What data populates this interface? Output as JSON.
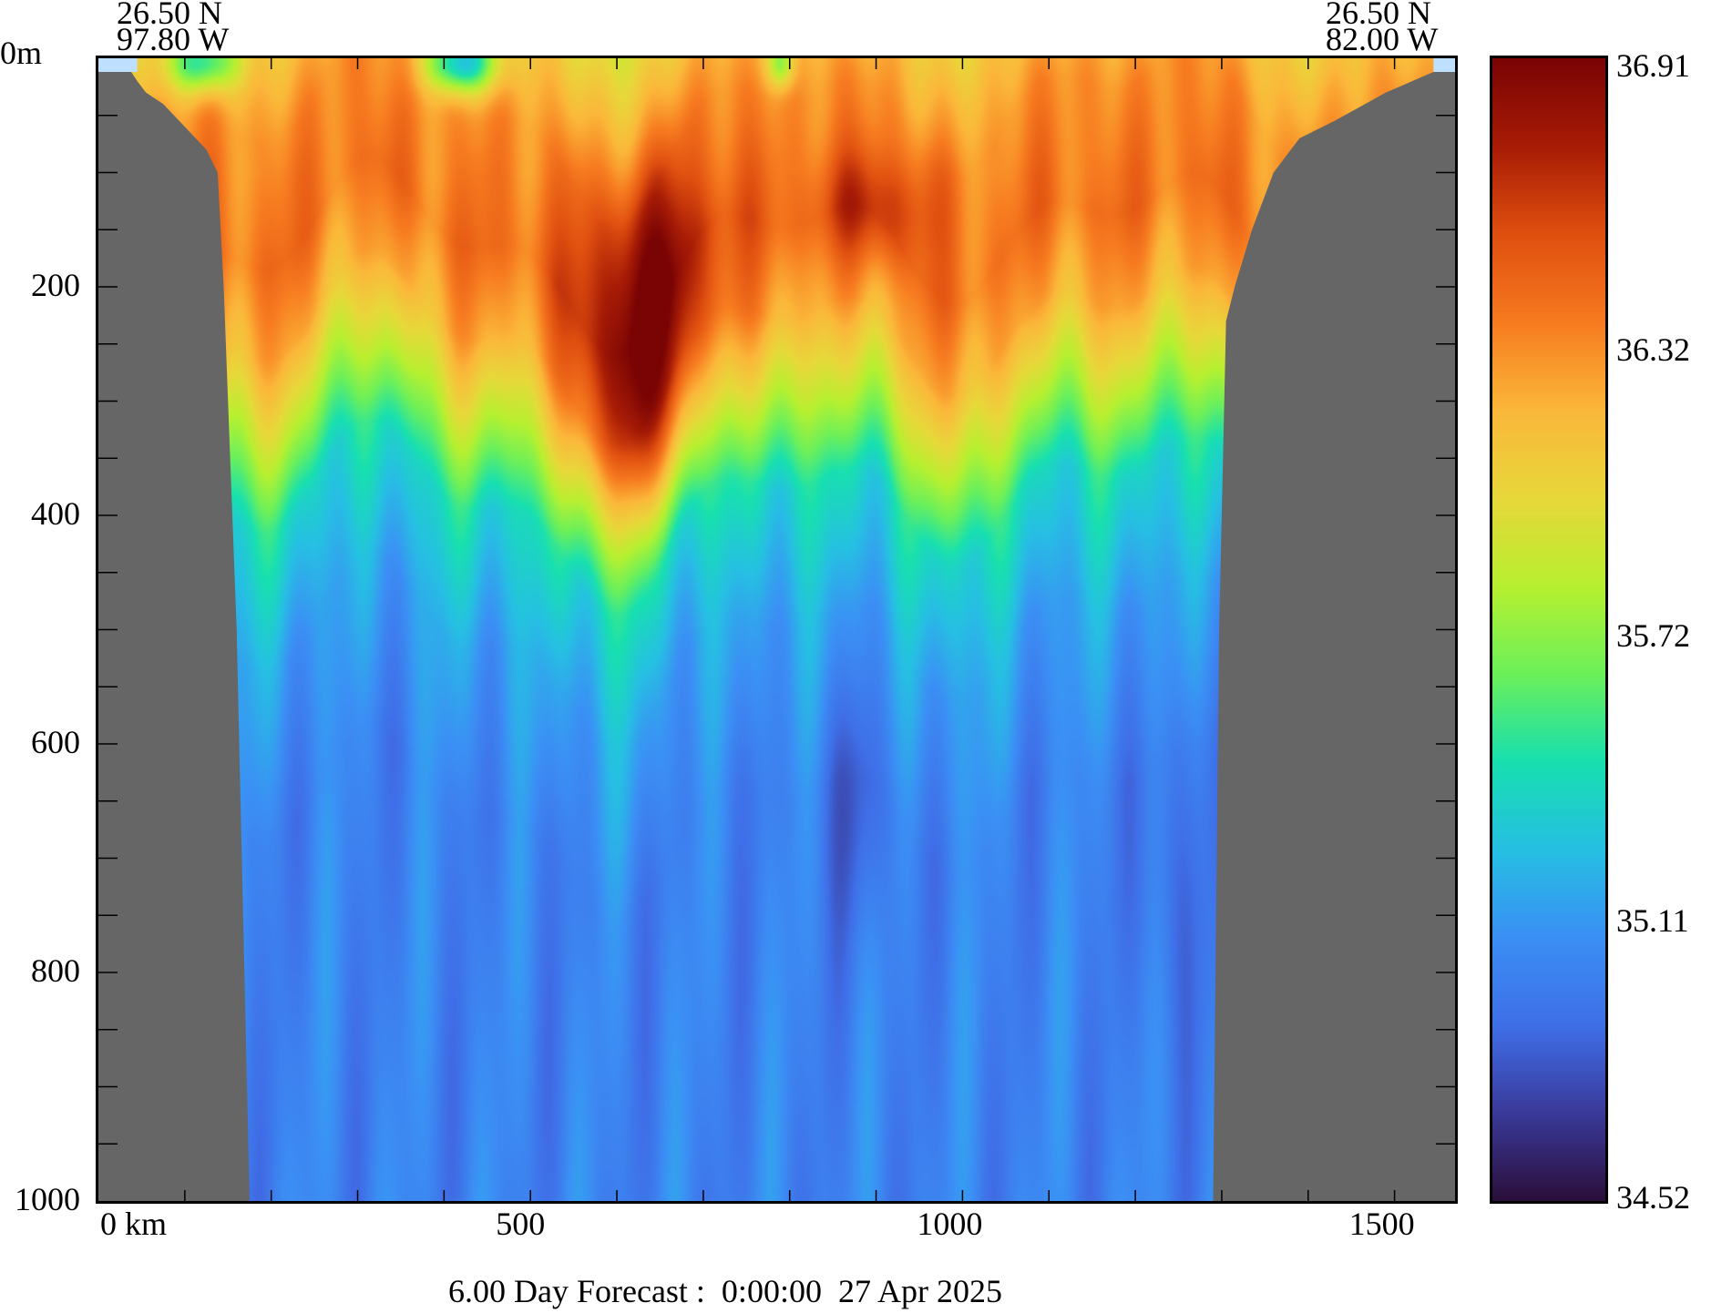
{
  "chart_data": {
    "type": "heatmap",
    "title": "6.00 Day Forecast :  0:00:00  27 Apr 2025",
    "section_start": {
      "lat": "26.50 N",
      "lon": "97.80 W"
    },
    "section_end": {
      "lat": "26.50 N",
      "lon": "82.00 W"
    },
    "xlabel": "km",
    "ylabel": "m",
    "xlim": [
      0,
      1570
    ],
    "ylim": [
      1000,
      0
    ],
    "x_ticks": [
      {
        "value": 0,
        "label": "0 km"
      },
      {
        "value": 500,
        "label": "500"
      },
      {
        "value": 1000,
        "label": "1000"
      },
      {
        "value": 1500,
        "label": "1500"
      }
    ],
    "x_minor_step": 100,
    "y_ticks": [
      {
        "value": 0,
        "label": "0m"
      },
      {
        "value": 200,
        "label": "200"
      },
      {
        "value": 400,
        "label": "400"
      },
      {
        "value": 600,
        "label": "600"
      },
      {
        "value": 800,
        "label": "800"
      },
      {
        "value": 1000,
        "label": "1000"
      }
    ],
    "y_minor_step": 50,
    "colorbar": {
      "min": 34.52,
      "max": 36.91,
      "tick_labels": [
        "36.91",
        "36.32",
        "35.72",
        "35.11",
        "34.52"
      ],
      "colormap": [
        "#2b0f3a",
        "#3a3a9a",
        "#3f6fe8",
        "#3b90f5",
        "#26c0e3",
        "#18e0b0",
        "#6cf05a",
        "#b8f030",
        "#e8d83a",
        "#fbb83a",
        "#f77b20",
        "#e05010",
        "#a81c06",
        "#7a0404"
      ]
    },
    "mean_profile": [
      [
        0,
        36.2
      ],
      [
        40,
        36.3
      ],
      [
        150,
        36.4
      ],
      [
        230,
        36.2
      ],
      [
        300,
        35.85
      ],
      [
        380,
        35.4
      ],
      [
        500,
        35.15
      ],
      [
        650,
        35.0
      ],
      [
        1000,
        35.0
      ]
    ],
    "features": [
      {
        "name": "high-salinity core",
        "x_km": 640,
        "depth_m": 210,
        "value": 36.91
      },
      {
        "name": "secondary maximum",
        "x_km": 900,
        "depth_m": 130,
        "value": 36.6
      },
      {
        "name": "fresh surface patch",
        "x_km": 120,
        "depth_m": 5,
        "value": 35.5
      },
      {
        "name": "fresh surface patch",
        "x_km": 420,
        "depth_m": 5,
        "value": 35.3
      }
    ],
    "land_left": [
      [
        0,
        12
      ],
      [
        38,
        12
      ],
      [
        45,
        20
      ],
      [
        55,
        30
      ],
      [
        75,
        40
      ],
      [
        100,
        60
      ],
      [
        125,
        80
      ],
      [
        138,
        100
      ],
      [
        145,
        200
      ],
      [
        160,
        500
      ],
      [
        175,
        1000
      ],
      [
        0,
        1000
      ]
    ],
    "land_right": [
      [
        1290,
        1000
      ],
      [
        1297,
        500
      ],
      [
        1305,
        230
      ],
      [
        1315,
        200
      ],
      [
        1335,
        150
      ],
      [
        1360,
        100
      ],
      [
        1390,
        70
      ],
      [
        1430,
        55
      ],
      [
        1490,
        30
      ],
      [
        1545,
        12
      ],
      [
        1570,
        12
      ],
      [
        1570,
        1000
      ]
    ],
    "land_color": "#666666",
    "surface_color": "#bfdfff"
  }
}
